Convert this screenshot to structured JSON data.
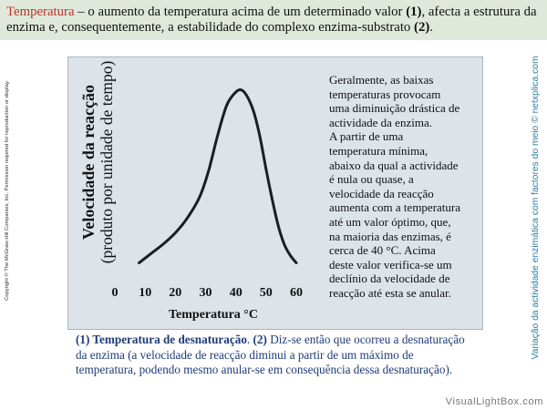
{
  "header": {
    "term": "Temperatura",
    "line1_text_a": " – o aumento da temperatura acima de um determinado valor ",
    "ref1": "(1)",
    "line1_text_b": ", afecta a estrutura da",
    "line2_text_a": "enzima e, consequentemente, a estabilidade do complexo enzima-substrato ",
    "ref2": "(2)",
    "line2_text_b": "."
  },
  "copyright": "Copyright © The McGraw-Hill Companies, Inc. Permission required for reproduction or display.",
  "side_title": "Variação da actividade enzimática com factores do meio © netxplica.com",
  "side_note": {
    "lines": [
      "Geralmente, as baixas",
      "temperaturas provocam",
      "uma diminuição drástica de",
      "actividade da enzima.",
      "A partir de uma",
      "temperatura mínima,",
      "abaixo da qual a actividade",
      "é nula ou quase, a",
      "velocidade da reacção",
      "aumenta com a temperatura",
      "até um valor óptimo, que,",
      "na maioria das enzimas, é",
      "cerca de 40 °C. Acima",
      "deste valor verifica-se um",
      "declínio da velocidade de",
      "reacção até esta se anular."
    ]
  },
  "caption": {
    "ref1_term": "(1) Temperatura de desnaturação",
    "sep": ". ",
    "ref2": "(2)",
    "line1_rest": " Diz-se então que ocorreu a desnaturação",
    "line2": "da enzima (a velocidade de reacção diminui a partir de um máximo de",
    "line3": "temperatura, podendo mesmo anular-se em consequência dessa desnaturação)."
  },
  "watermark": "VisualLightBox.com",
  "colors": {
    "header_bg": "#dfe8da",
    "term": "#b8352b",
    "panel_bg": "#dce4ea",
    "curve": "#1e1e1e",
    "caption": "#1e3b78",
    "side_title": "#2c7fa4",
    "watermark": "#777777"
  },
  "chart_data": {
    "type": "line",
    "ylabel": "Velocidade da reacção",
    "ylabel_sub": "(produto por unidade de tempo)",
    "xlabel": "Temperatura °C",
    "xticks": [
      0,
      10,
      20,
      30,
      40,
      50,
      60
    ],
    "xlim": [
      0,
      60
    ],
    "grid": false,
    "series": [
      {
        "x": [
          8,
          12,
          16,
          20,
          24,
          28,
          31,
          34,
          37,
          40,
          42,
          44,
          46,
          48,
          50,
          52,
          54,
          56,
          58,
          60
        ],
        "y": [
          0.08,
          0.13,
          0.18,
          0.24,
          0.32,
          0.43,
          0.57,
          0.76,
          0.92,
          0.99,
          1.0,
          0.96,
          0.88,
          0.75,
          0.58,
          0.42,
          0.28,
          0.18,
          0.12,
          0.08
        ]
      }
    ]
  }
}
